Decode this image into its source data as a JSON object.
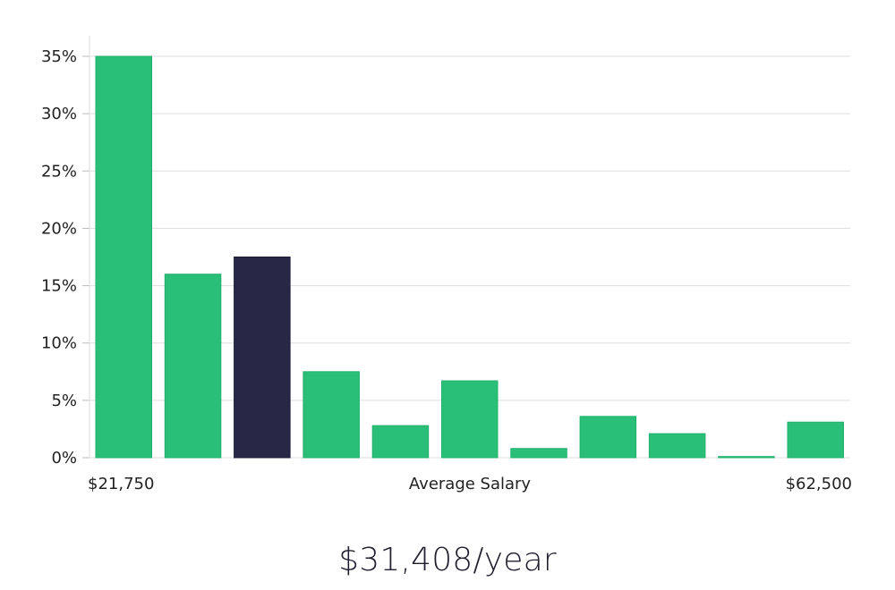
{
  "chart_data": {
    "type": "bar",
    "x_min_label": "$21,750",
    "x_max_label": "$62,500",
    "xlabel": "Average Salary",
    "ylim": [
      0,
      35
    ],
    "yticks": [
      0,
      5,
      10,
      15,
      20,
      25,
      30,
      35
    ],
    "ytick_labels": [
      "0%",
      "5%",
      "10%",
      "15%",
      "20%",
      "25%",
      "30%",
      "35%"
    ],
    "values": [
      35.0,
      16.0,
      17.5,
      7.5,
      2.8,
      6.7,
      0.8,
      3.6,
      2.1,
      0.1,
      3.1
    ],
    "highlight_index": 2,
    "grid": true
  },
  "colors": {
    "bar": "#2abf78",
    "highlight": "#282746",
    "grid": "#dddddd"
  },
  "salary_summary": "$31,408/year"
}
